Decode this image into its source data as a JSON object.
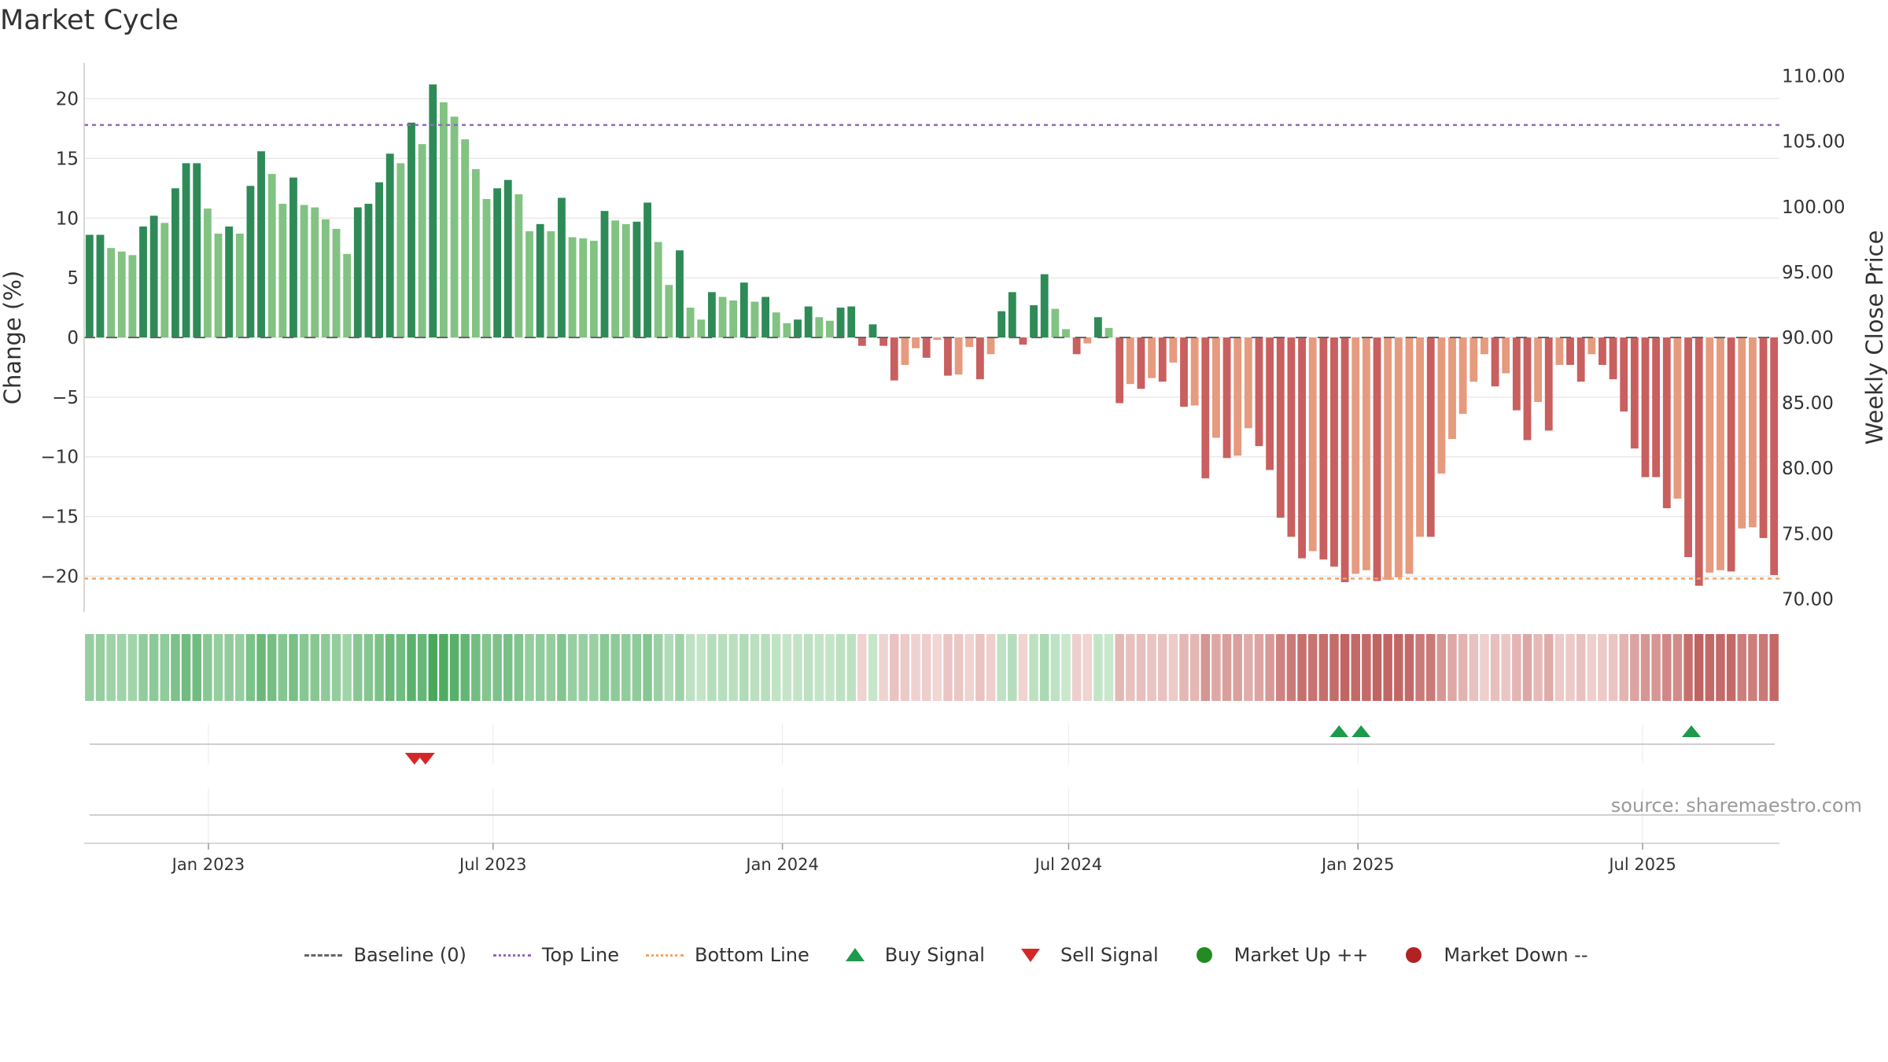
{
  "chart_data": {
    "type": "bar",
    "title": "Market Cycle",
    "ylabel_left": "Change (%)",
    "ylabel_right": "Weekly Close Price",
    "ylim_left": [
      -23,
      23
    ],
    "ylim_right": [
      69,
      111
    ],
    "yticks_left": [
      "20",
      "15",
      "10",
      "5",
      "0",
      "−5",
      "−10",
      "−15",
      "−20"
    ],
    "yticks_right": [
      "110.00",
      "105.00",
      "100.00",
      "95.00",
      "90.00",
      "85.00",
      "80.00",
      "75.00",
      "70.00"
    ],
    "yticks_left_values": [
      20,
      15,
      10,
      5,
      0,
      -5,
      -10,
      -15,
      -20
    ],
    "yticks_right_values": [
      110,
      105,
      100,
      95,
      90,
      85,
      80,
      75,
      70
    ],
    "x_start": "2022-10-14",
    "x_end": "2025-09-26",
    "xticks": [
      {
        "date": "2023-01-01",
        "label": "Jan 2023"
      },
      {
        "date": "2023-07-01",
        "label": "Jul 2023"
      },
      {
        "date": "2024-01-01",
        "label": "Jan 2024"
      },
      {
        "date": "2024-07-01",
        "label": "Jul 2024"
      },
      {
        "date": "2025-01-01",
        "label": "Jan 2025"
      },
      {
        "date": "2025-07-01",
        "label": "Jul 2025"
      }
    ],
    "top_line": 17.8,
    "bottom_line": -20.2,
    "weekly_change": [
      8.6,
      8.6,
      7.5,
      7.2,
      6.9,
      9.3,
      10.2,
      9.6,
      12.5,
      14.6,
      14.6,
      10.8,
      8.7,
      9.3,
      8.7,
      12.7,
      15.6,
      13.7,
      11.2,
      13.4,
      11.1,
      10.9,
      9.9,
      9.1,
      7.0,
      10.9,
      11.2,
      13.0,
      15.4,
      14.6,
      18.0,
      16.2,
      21.2,
      19.7,
      18.5,
      16.6,
      14.1,
      11.6,
      12.5,
      13.2,
      12.0,
      8.9,
      9.5,
      8.9,
      11.7,
      8.4,
      8.3,
      8.1,
      10.6,
      9.8,
      9.5,
      9.7,
      11.3,
      8.0,
      4.4,
      7.3,
      2.5,
      1.5,
      3.8,
      3.4,
      3.1,
      4.6,
      3.0,
      3.4,
      2.1,
      1.2,
      1.5,
      2.6,
      1.7,
      1.4,
      2.5,
      2.6,
      -0.7,
      1.1,
      -0.7,
      -3.6,
      -2.3,
      -0.9,
      -1.7,
      -0.2,
      -3.2,
      -3.1,
      -0.8,
      -3.5,
      -1.4,
      2.2,
      3.8,
      -0.6,
      2.7,
      5.3,
      2.4,
      0.7,
      -1.4,
      -0.5,
      1.7,
      0.8,
      -5.5,
      -3.9,
      -4.3,
      -3.4,
      -3.7,
      -2.1,
      -5.8,
      -5.7,
      -11.8,
      -8.4,
      -10.1,
      -9.9,
      -7.6,
      -9.1,
      -11.1,
      -15.1,
      -16.7,
      -18.5,
      -17.9,
      -18.6,
      -19.2,
      -20.5,
      -19.8,
      -19.5,
      -20.4,
      -20.3,
      -20.1,
      -19.8,
      -16.7,
      -16.7,
      -11.4,
      -8.5,
      -6.4,
      -3.7,
      -1.4,
      -4.1,
      -3.0,
      -6.1,
      -8.6,
      -5.4,
      -7.8,
      -2.3,
      -2.3,
      -3.7,
      -1.4,
      -2.3,
      -3.5,
      -6.2,
      -9.3,
      -11.7,
      -11.7,
      -14.3,
      -13.5,
      -18.4,
      -20.8,
      -19.7,
      -19.5,
      -19.6,
      -16.0,
      -15.9,
      -16.8,
      -19.9
    ],
    "buy_signals": [
      "2024-12-20",
      "2025-01-03",
      "2025-08-01"
    ],
    "sell_signals": [
      "2023-05-12",
      "2023-05-19"
    ],
    "legend": [
      {
        "label": "Baseline (0)",
        "symbol": "dash",
        "color": "#666666"
      },
      {
        "label": "Top Line",
        "symbol": "dotted",
        "color": "#9467bd"
      },
      {
        "label": "Bottom Line",
        "symbol": "dotted",
        "color": "#f4a261"
      },
      {
        "label": "Buy Signal",
        "symbol": "triangle-up",
        "color": "#1e9a4b"
      },
      {
        "label": "Sell Signal",
        "symbol": "triangle-down",
        "color": "#d62728"
      },
      {
        "label": "Market Up ++",
        "symbol": "dot",
        "color": "#228b22"
      },
      {
        "label": "Market Down --",
        "symbol": "dot",
        "color": "#b22222"
      }
    ],
    "legend_placement": "bottom"
  },
  "source": "source: sharemaestro.com",
  "colors": {
    "up_strong": "#2e8b57",
    "up_weak": "#82c282",
    "down_strong": "#c95f5f",
    "down_weak": "#e69a7e",
    "top_line": "#9467bd",
    "bottom_line": "#f4a261"
  }
}
